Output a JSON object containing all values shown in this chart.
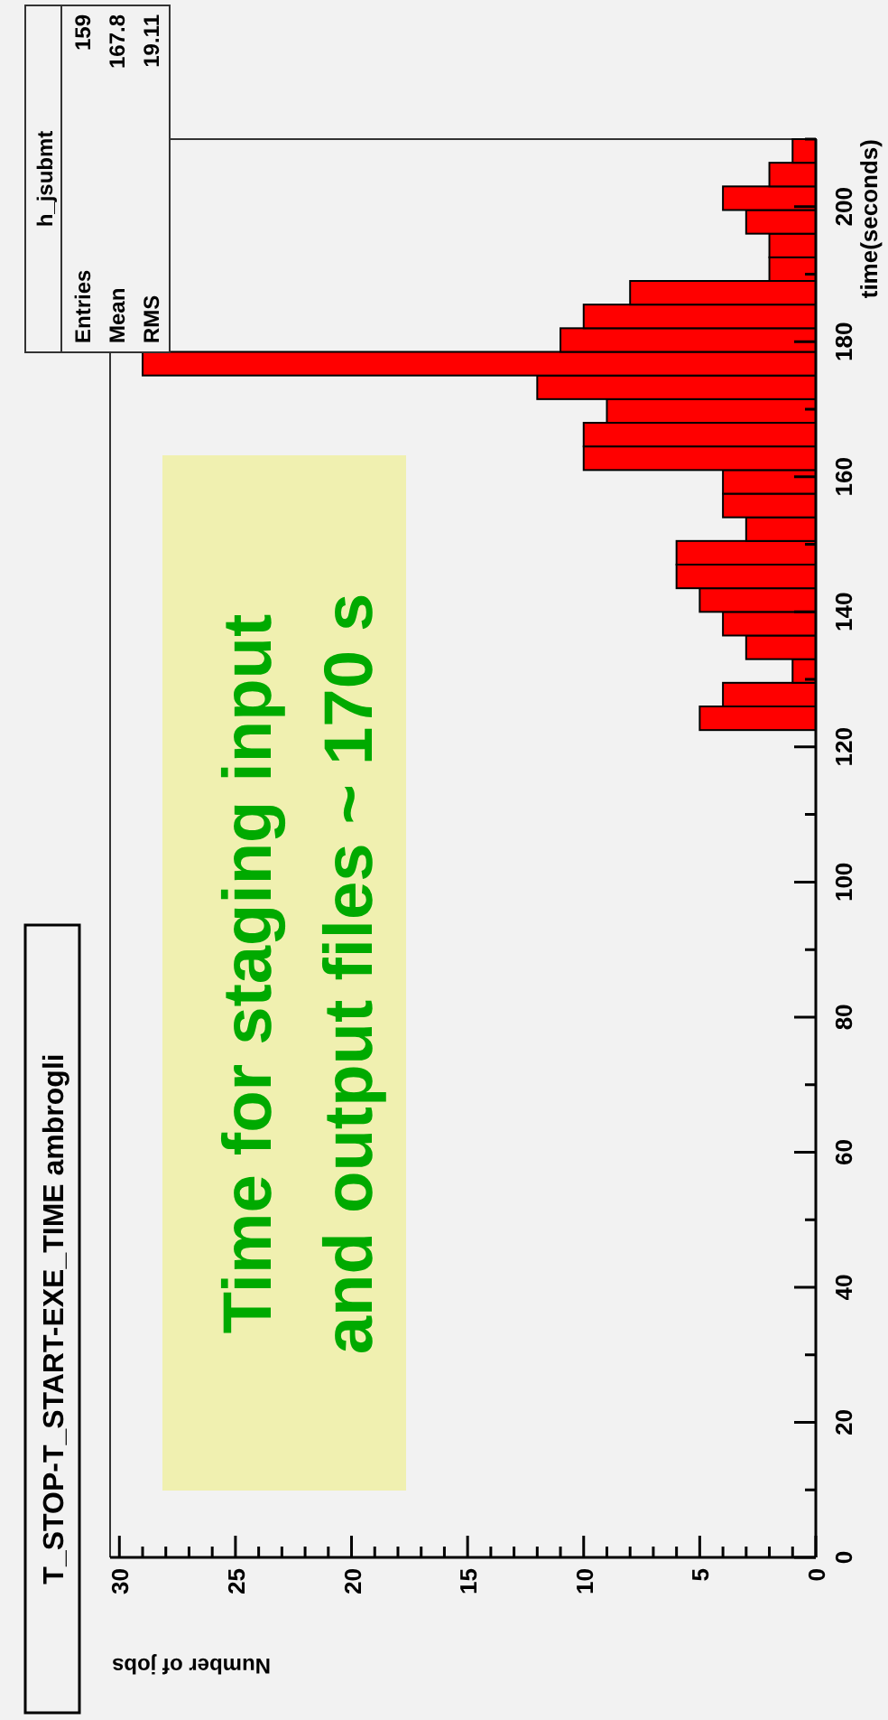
{
  "chart_data": {
    "type": "histogram",
    "orientation": "horizontal",
    "title": "T_STOP-T_START-EXE_TIME ambrogli",
    "xlabel": "Number of jobs",
    "ylabel": "time(seconds)",
    "bins": [
      122.5,
      126,
      129.5,
      133,
      136.5,
      140,
      143.5,
      147,
      150.5,
      154,
      157.5,
      161,
      164.5,
      168,
      171.5,
      175,
      178.5,
      182,
      185.5,
      189,
      192.5,
      196,
      199.5,
      203,
      206.5,
      210
    ],
    "values": [
      5,
      4,
      1,
      3,
      4,
      5,
      6,
      6,
      3,
      4,
      4,
      10,
      10,
      9,
      12,
      29,
      11,
      10,
      8,
      2,
      2,
      3,
      4,
      2,
      1
    ],
    "color": "#ff0000",
    "xlim": [
      30.4,
      0
    ],
    "xticks": [
      0,
      {
        "value": 1,
        "label": null
      },
      {
        "value": 2,
        "label": null
      },
      {
        "value": 3,
        "label": null
      },
      {
        "value": 4,
        "label": null
      },
      5,
      {
        "value": 6,
        "label": null
      },
      {
        "value": 7,
        "label": null
      },
      {
        "value": 8,
        "label": null
      },
      {
        "value": 9,
        "label": null
      },
      10,
      {
        "value": 11,
        "label": null
      },
      {
        "value": 12,
        "label": null
      },
      {
        "value": 13,
        "label": null
      },
      {
        "value": 14,
        "label": null
      },
      15,
      {
        "value": 16,
        "label": null
      },
      {
        "value": 17,
        "label": null
      },
      {
        "value": 18,
        "label": null
      },
      {
        "value": 19,
        "label": null
      },
      20,
      {
        "value": 21,
        "label": null
      },
      {
        "value": 22,
        "label": null
      },
      {
        "value": 23,
        "label": null
      },
      {
        "value": 24,
        "label": null
      },
      25,
      {
        "value": 26,
        "label": null
      },
      {
        "value": 27,
        "label": null
      },
      {
        "value": 28,
        "label": null
      },
      {
        "value": 29,
        "label": null
      },
      30
    ],
    "ylim": [
      0,
      210
    ],
    "yticks": [
      0,
      {
        "value": 10,
        "label": null
      },
      20,
      {
        "value": 30,
        "label": null
      },
      40,
      {
        "value": 50,
        "label": null
      },
      60,
      {
        "value": 70,
        "label": null
      },
      80,
      {
        "value": 90,
        "label": null
      },
      100,
      {
        "value": 110,
        "label": null
      },
      120,
      {
        "value": 130,
        "label": null
      },
      140,
      {
        "value": 150,
        "label": null
      },
      160,
      {
        "value": 170,
        "label": null
      },
      180,
      {
        "value": 190,
        "label": null
      },
      200,
      {
        "value": 210,
        "label": null
      }
    ],
    "annotations": [
      "h_jsubmt",
      "Entries",
      "159",
      "Mean",
      "167.8",
      "RMS",
      "19.11",
      "Time for staging input\nand output files ~ 170 s"
    ]
  }
}
